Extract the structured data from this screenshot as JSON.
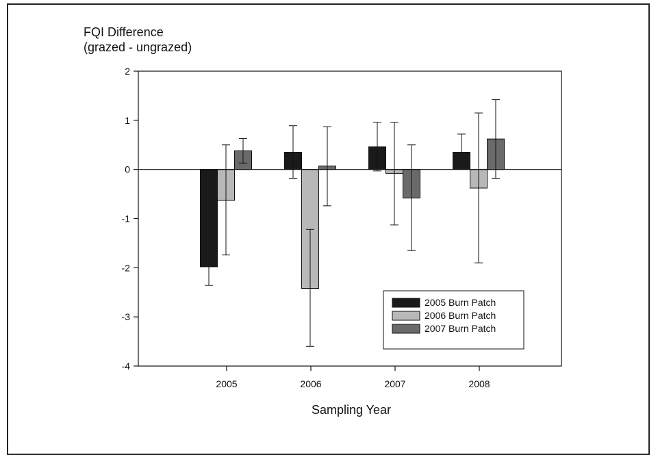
{
  "chart_data": {
    "type": "bar",
    "ylabel_lines": [
      "FQI Difference",
      "(grazed - ungrazed)"
    ],
    "xlabel": "Sampling Year",
    "categories": [
      "2005",
      "2006",
      "2007",
      "2008"
    ],
    "ylim": [
      -4,
      2
    ],
    "yticks": [
      2,
      1,
      0,
      -1,
      -2,
      -3,
      -4
    ],
    "grid": false,
    "legend_position": "bottom-right",
    "series": [
      {
        "name": "2005 Burn Patch",
        "color": "#1a1a1a",
        "values": [
          -1.98,
          0.35,
          0.46,
          0.35
        ],
        "err_low": [
          -2.36,
          -0.18,
          -0.03,
          null
        ],
        "err_high": [
          null,
          0.89,
          0.96,
          0.72
        ]
      },
      {
        "name": "2006 Burn Patch",
        "color": "#b8b8b8",
        "values": [
          -0.63,
          -2.42,
          -0.08,
          -0.38
        ],
        "err_low": [
          -1.74,
          -3.6,
          -1.13,
          -1.9
        ],
        "err_high": [
          0.5,
          -1.22,
          0.96,
          1.15
        ]
      },
      {
        "name": "2007 Burn Patch",
        "color": "#6a6a6a",
        "values": [
          0.38,
          0.07,
          -0.58,
          0.62
        ],
        "err_low": [
          0.13,
          -0.74,
          -1.65,
          -0.18
        ],
        "err_high": [
          0.63,
          0.87,
          0.5,
          1.42
        ]
      }
    ]
  }
}
